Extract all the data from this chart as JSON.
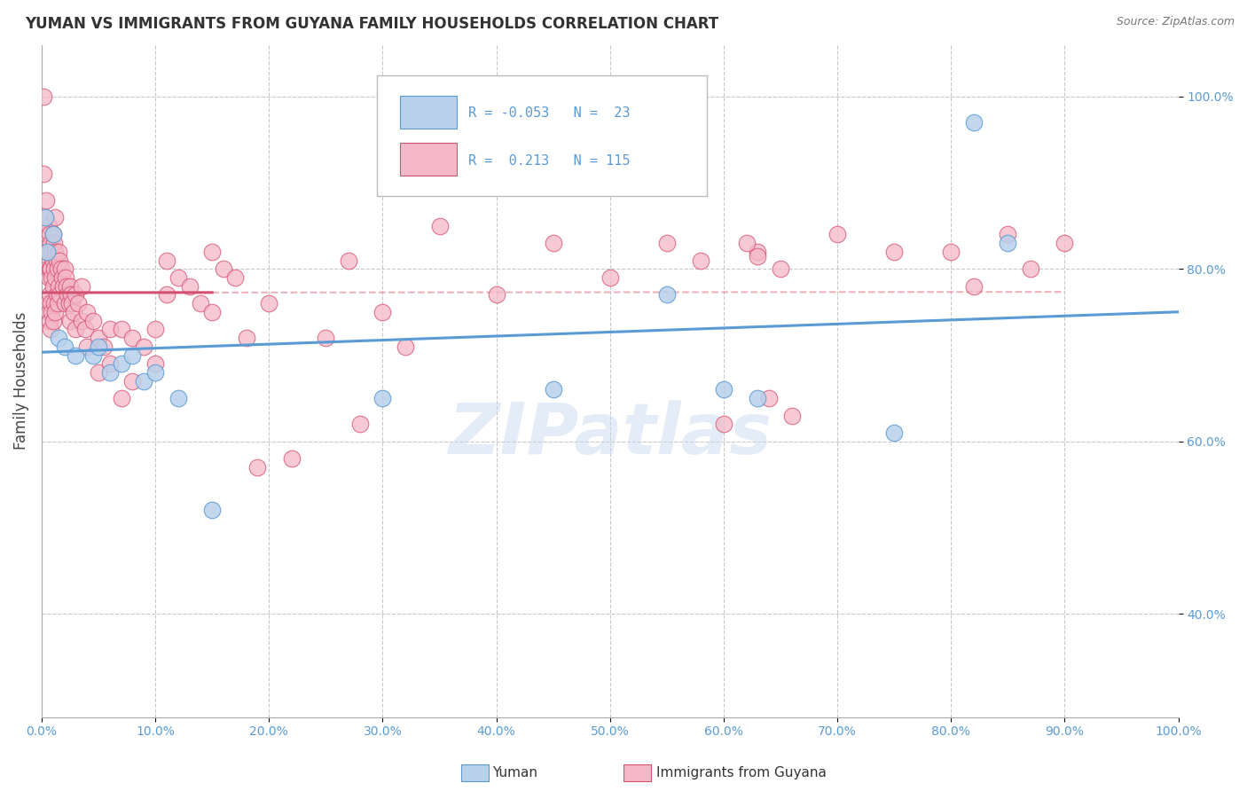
{
  "title": "YUMAN VS IMMIGRANTS FROM GUYANA FAMILY HOUSEHOLDS CORRELATION CHART",
  "source_text": "Source: ZipAtlas.com",
  "ylabel": "Family Households",
  "watermark": "ZIPatlas",
  "xmin": 0.0,
  "xmax": 100.0,
  "ymin": 28.0,
  "ymax": 106.0,
  "yticks": [
    40.0,
    60.0,
    80.0,
    100.0
  ],
  "xticks": [
    0.0,
    10.0,
    20.0,
    30.0,
    40.0,
    50.0,
    60.0,
    70.0,
    80.0,
    90.0,
    100.0
  ],
  "legend": {
    "yuman_r": -0.053,
    "yuman_n": 23,
    "guyana_r": 0.213,
    "guyana_n": 115
  },
  "blue_fill": "#b8d0ea",
  "blue_edge": "#5b9bd5",
  "pink_fill": "#f4b8c8",
  "pink_edge": "#d45070",
  "blue_line": "#5b9bd5",
  "pink_line": "#d45070",
  "dash_line": "#e08090",
  "yuman_points": [
    [
      0.3,
      86.0
    ],
    [
      0.5,
      82.0
    ],
    [
      1.0,
      84.0
    ],
    [
      1.5,
      72.0
    ],
    [
      2.0,
      71.0
    ],
    [
      3.0,
      70.0
    ],
    [
      4.5,
      70.0
    ],
    [
      5.0,
      71.0
    ],
    [
      6.0,
      68.0
    ],
    [
      7.0,
      69.0
    ],
    [
      8.0,
      70.0
    ],
    [
      9.0,
      67.0
    ],
    [
      10.0,
      68.0
    ],
    [
      12.0,
      65.0
    ],
    [
      15.0,
      52.0
    ],
    [
      30.0,
      65.0
    ],
    [
      45.0,
      66.0
    ],
    [
      55.0,
      77.0
    ],
    [
      60.0,
      66.0
    ],
    [
      63.0,
      65.0
    ],
    [
      75.0,
      61.0
    ],
    [
      82.0,
      97.0
    ],
    [
      85.0,
      83.0
    ]
  ],
  "guyana_points": [
    [
      0.15,
      100.0
    ],
    [
      0.2,
      91.0
    ],
    [
      0.3,
      86.0
    ],
    [
      0.4,
      88.0
    ],
    [
      0.4,
      82.0
    ],
    [
      0.5,
      84.0
    ],
    [
      0.5,
      80.0
    ],
    [
      0.5,
      76.0
    ],
    [
      0.6,
      85.0
    ],
    [
      0.6,
      82.0
    ],
    [
      0.6,
      79.0
    ],
    [
      0.6,
      75.0
    ],
    [
      0.7,
      84.0
    ],
    [
      0.7,
      80.0
    ],
    [
      0.7,
      77.0
    ],
    [
      0.7,
      74.0
    ],
    [
      0.8,
      83.0
    ],
    [
      0.8,
      80.0
    ],
    [
      0.8,
      76.0
    ],
    [
      0.8,
      73.0
    ],
    [
      0.9,
      82.0
    ],
    [
      0.9,
      79.0
    ],
    [
      0.9,
      75.0
    ],
    [
      1.0,
      84.0
    ],
    [
      1.0,
      81.0
    ],
    [
      1.0,
      78.0
    ],
    [
      1.0,
      74.0
    ],
    [
      1.1,
      83.0
    ],
    [
      1.1,
      80.0
    ],
    [
      1.1,
      76.0
    ],
    [
      1.2,
      86.0
    ],
    [
      1.2,
      82.0
    ],
    [
      1.2,
      79.0
    ],
    [
      1.2,
      75.0
    ],
    [
      1.3,
      81.0
    ],
    [
      1.3,
      77.0
    ],
    [
      1.4,
      80.0
    ],
    [
      1.4,
      76.0
    ],
    [
      1.5,
      82.0
    ],
    [
      1.5,
      78.0
    ],
    [
      1.6,
      81.0
    ],
    [
      1.6,
      77.0
    ],
    [
      1.7,
      80.0
    ],
    [
      1.8,
      79.0
    ],
    [
      1.9,
      78.0
    ],
    [
      2.0,
      80.0
    ],
    [
      2.0,
      76.0
    ],
    [
      2.1,
      79.0
    ],
    [
      2.2,
      78.0
    ],
    [
      2.3,
      77.0
    ],
    [
      2.4,
      76.0
    ],
    [
      2.5,
      78.0
    ],
    [
      2.5,
      74.0
    ],
    [
      2.6,
      77.0
    ],
    [
      2.7,
      76.0
    ],
    [
      2.8,
      75.0
    ],
    [
      3.0,
      77.0
    ],
    [
      3.0,
      73.0
    ],
    [
      3.2,
      76.0
    ],
    [
      3.5,
      78.0
    ],
    [
      3.5,
      74.0
    ],
    [
      3.8,
      73.0
    ],
    [
      4.0,
      75.0
    ],
    [
      4.0,
      71.0
    ],
    [
      4.5,
      74.0
    ],
    [
      5.0,
      72.0
    ],
    [
      5.0,
      68.0
    ],
    [
      5.5,
      71.0
    ],
    [
      6.0,
      73.0
    ],
    [
      6.0,
      69.0
    ],
    [
      7.0,
      73.0
    ],
    [
      7.0,
      65.0
    ],
    [
      8.0,
      72.0
    ],
    [
      8.0,
      67.0
    ],
    [
      9.0,
      71.0
    ],
    [
      10.0,
      73.0
    ],
    [
      10.0,
      69.0
    ],
    [
      11.0,
      81.0
    ],
    [
      11.0,
      77.0
    ],
    [
      12.0,
      79.0
    ],
    [
      13.0,
      78.0
    ],
    [
      14.0,
      76.0
    ],
    [
      15.0,
      82.0
    ],
    [
      15.0,
      75.0
    ],
    [
      16.0,
      80.0
    ],
    [
      17.0,
      79.0
    ],
    [
      18.0,
      72.0
    ],
    [
      19.0,
      57.0
    ],
    [
      20.0,
      76.0
    ],
    [
      22.0,
      58.0
    ],
    [
      25.0,
      72.0
    ],
    [
      27.0,
      81.0
    ],
    [
      28.0,
      62.0
    ],
    [
      30.0,
      75.0
    ],
    [
      32.0,
      71.0
    ],
    [
      35.0,
      85.0
    ],
    [
      40.0,
      77.0
    ],
    [
      45.0,
      83.0
    ],
    [
      50.0,
      79.0
    ],
    [
      55.0,
      83.0
    ],
    [
      58.0,
      81.0
    ],
    [
      60.0,
      62.0
    ],
    [
      63.0,
      82.0
    ],
    [
      65.0,
      80.0
    ],
    [
      70.0,
      84.0
    ],
    [
      75.0,
      82.0
    ],
    [
      80.0,
      82.0
    ],
    [
      82.0,
      78.0
    ],
    [
      85.0,
      84.0
    ],
    [
      87.0,
      80.0
    ],
    [
      90.0,
      83.0
    ],
    [
      63.0,
      81.5
    ],
    [
      66.0,
      63.0
    ],
    [
      64.0,
      65.0
    ],
    [
      62.0,
      83.0
    ]
  ]
}
